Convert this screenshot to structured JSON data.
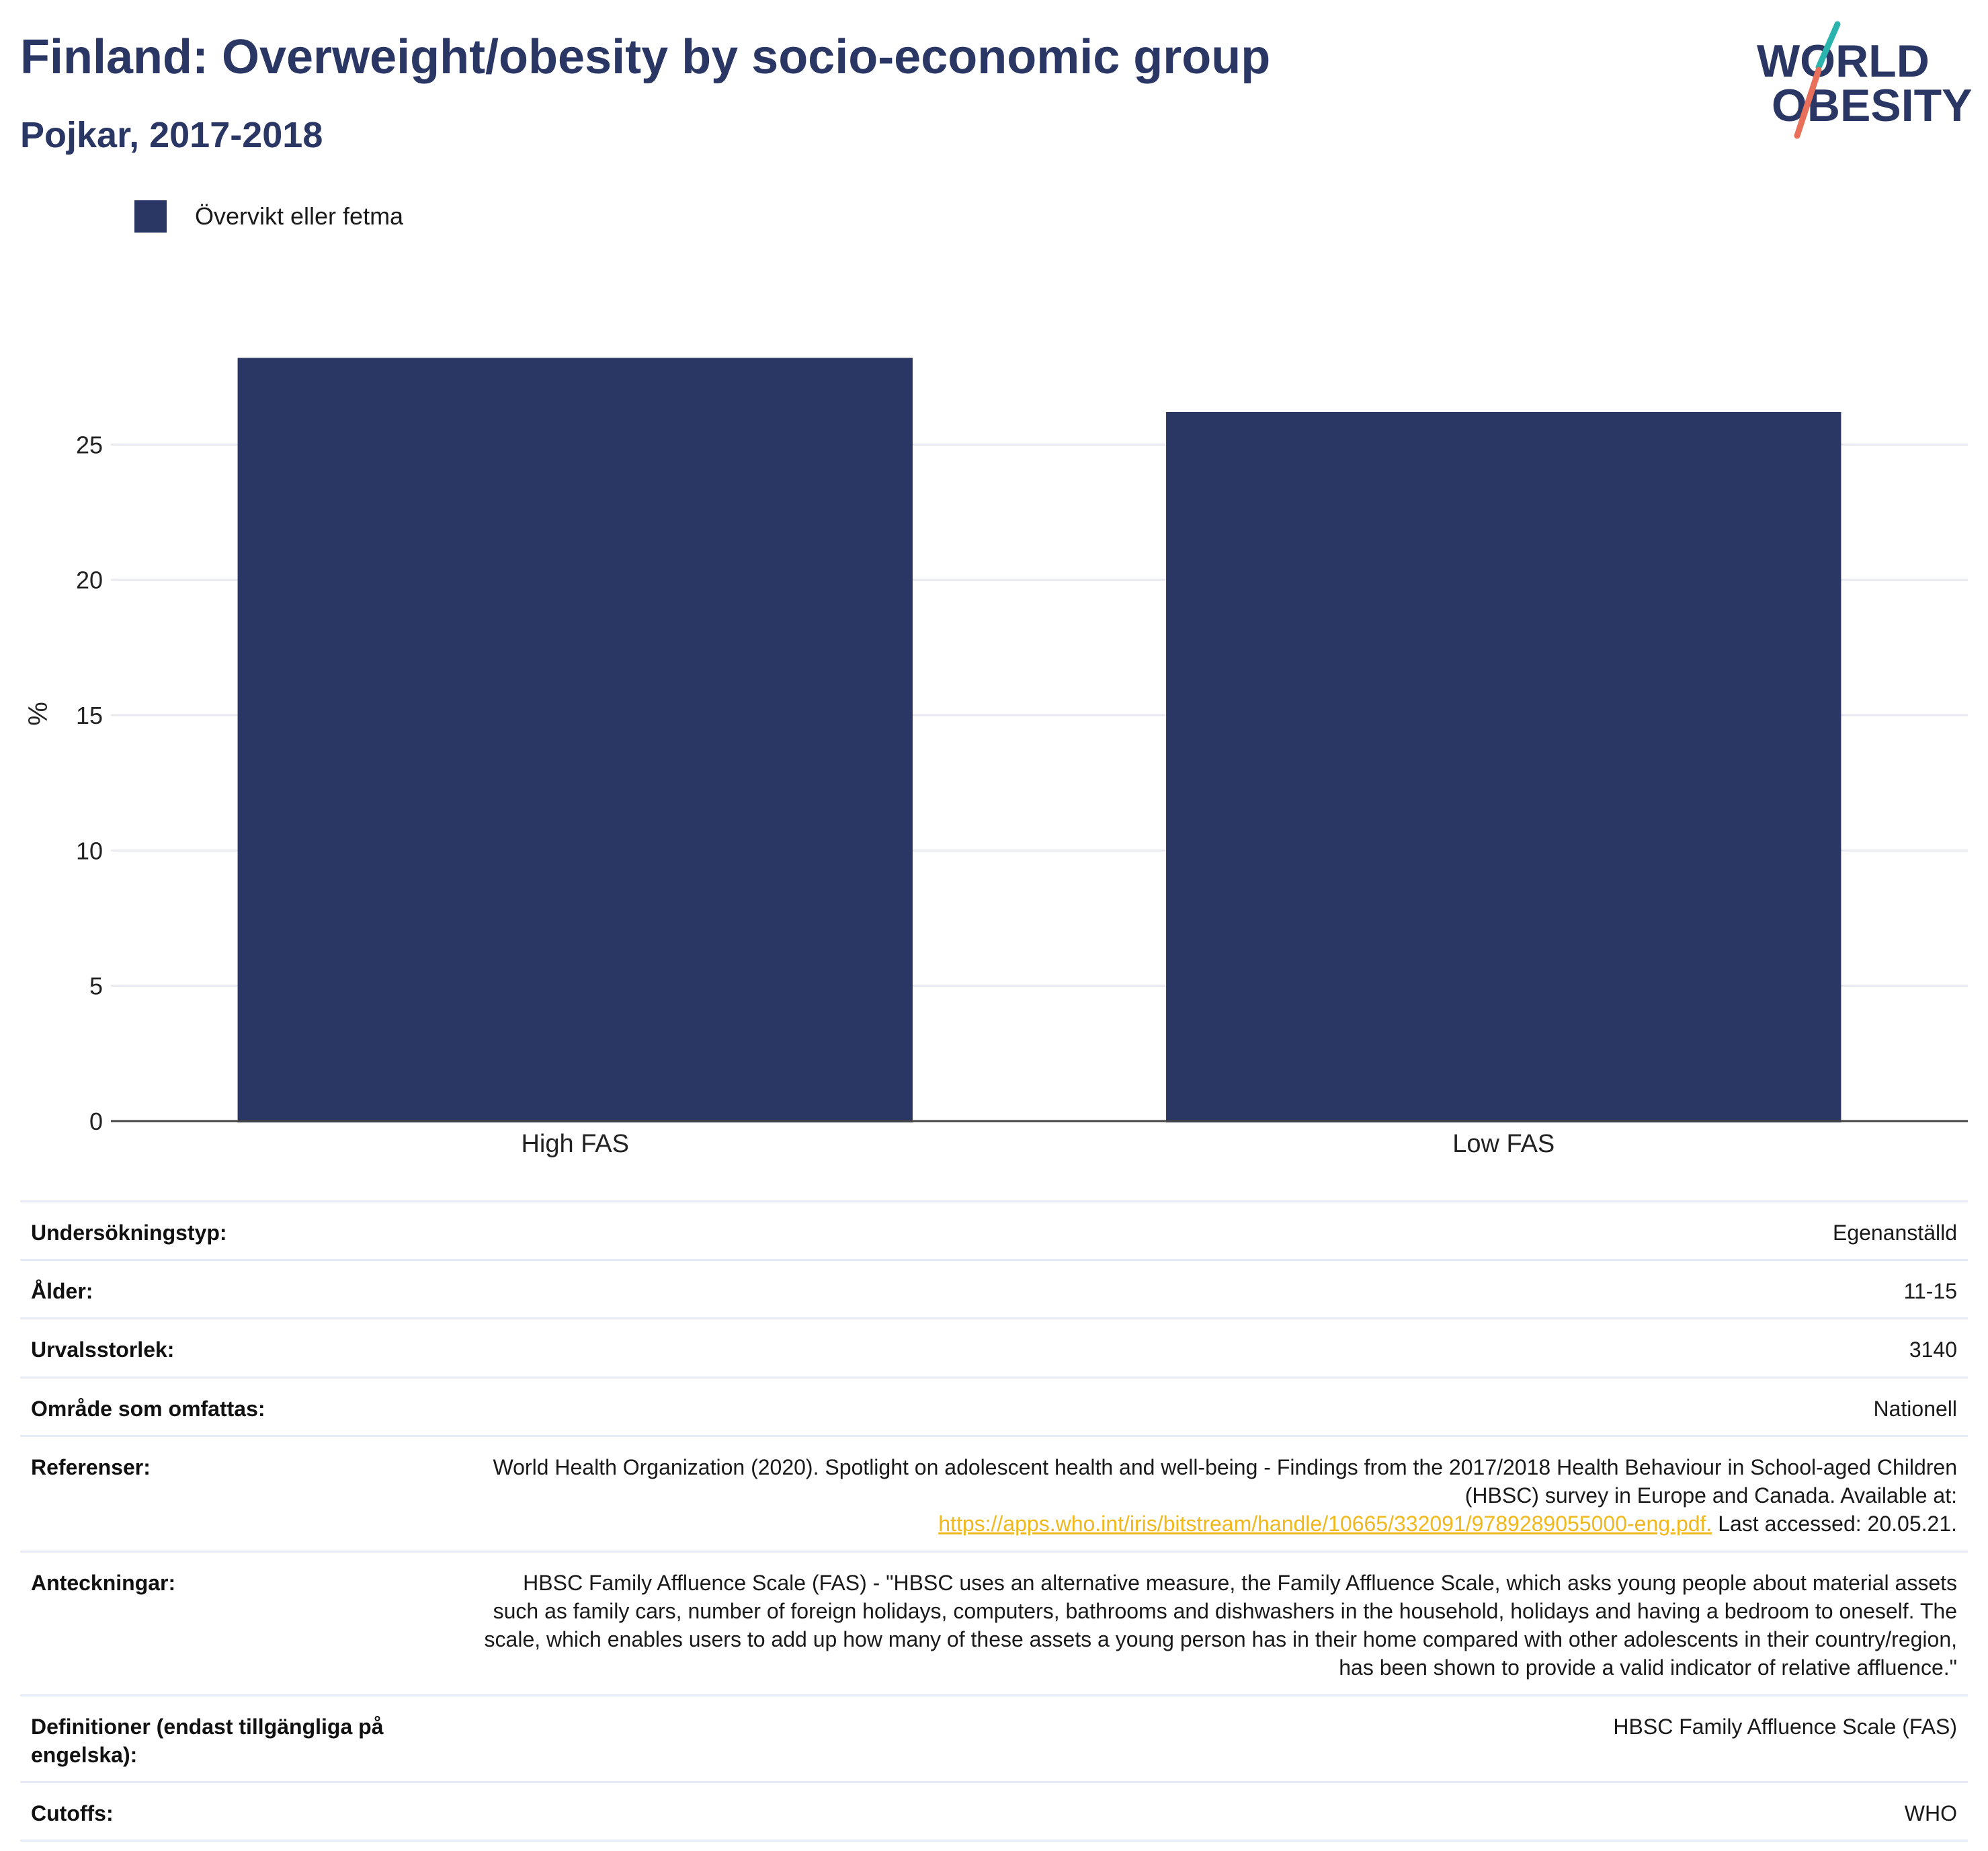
{
  "header": {
    "title": "Finland: Overweight/obesity by socio-economic group",
    "subtitle": "Pojkar, 2017-2018"
  },
  "logo": {
    "line1": "WORLD",
    "line2": "OBESITY",
    "colors": {
      "text": "#2a3663",
      "slash_top": "#2bb3ad",
      "slash_bottom": "#e8705a"
    }
  },
  "colors": {
    "bar": "#2a3663",
    "grid": "#e8eaf0",
    "axis": "#444444",
    "link": "#f0b81c"
  },
  "chart_data": {
    "type": "bar",
    "categories": [
      "High FAS",
      "Low FAS"
    ],
    "series": [
      {
        "name": "Övervikt eller fetma",
        "values": [
          28.2,
          26.2
        ]
      }
    ],
    "ylabel": "%",
    "xlabel": "",
    "ylim": [
      0,
      30
    ],
    "yticks": [
      0,
      5,
      10,
      15,
      20,
      25
    ],
    "grid": true,
    "legend_position": "top-left"
  },
  "info": [
    {
      "label": "Undersökningstyp:",
      "value": "Egenanställd"
    },
    {
      "label": "Ålder:",
      "value": "11-15"
    },
    {
      "label": "Urvalsstorlek:",
      "value": "3140"
    },
    {
      "label": "Område som omfattas:",
      "value": "Nationell"
    }
  ],
  "references": {
    "label": "Referenser:",
    "text": "World Health Organization (2020). Spotlight on adolescent health and well-being - Findings from the 2017/2018 Health Behaviour in School-aged Children (HBSC) survey in Europe and Canada. Available at:",
    "link": "https://apps.who.int/iris/bitstream/handle/10665/332091/9789289055000-eng.pdf.",
    "suffix": "Last accessed: 20.05.21."
  },
  "notes": {
    "label": "Anteckningar:",
    "text": "HBSC Family Affluence Scale (FAS) - \"HBSC uses an alternative measure, the Family Affluence Scale, which asks young people about material assets such as family cars, number of foreign holidays, computers, bathrooms and dishwashers in the household, holidays and having a bedroom to oneself. The scale, which enables users to add up how many of these assets a young person has in their home compared with other adolescents in their country/region, has been shown to provide a valid indicator of relative affluence.\""
  },
  "definitions": {
    "label": "Definitioner (endast tillgängliga på engelska):",
    "value": "HBSC Family Affluence Scale (FAS)"
  },
  "cutoffs": {
    "label": "Cutoffs:",
    "value": "WHO"
  }
}
